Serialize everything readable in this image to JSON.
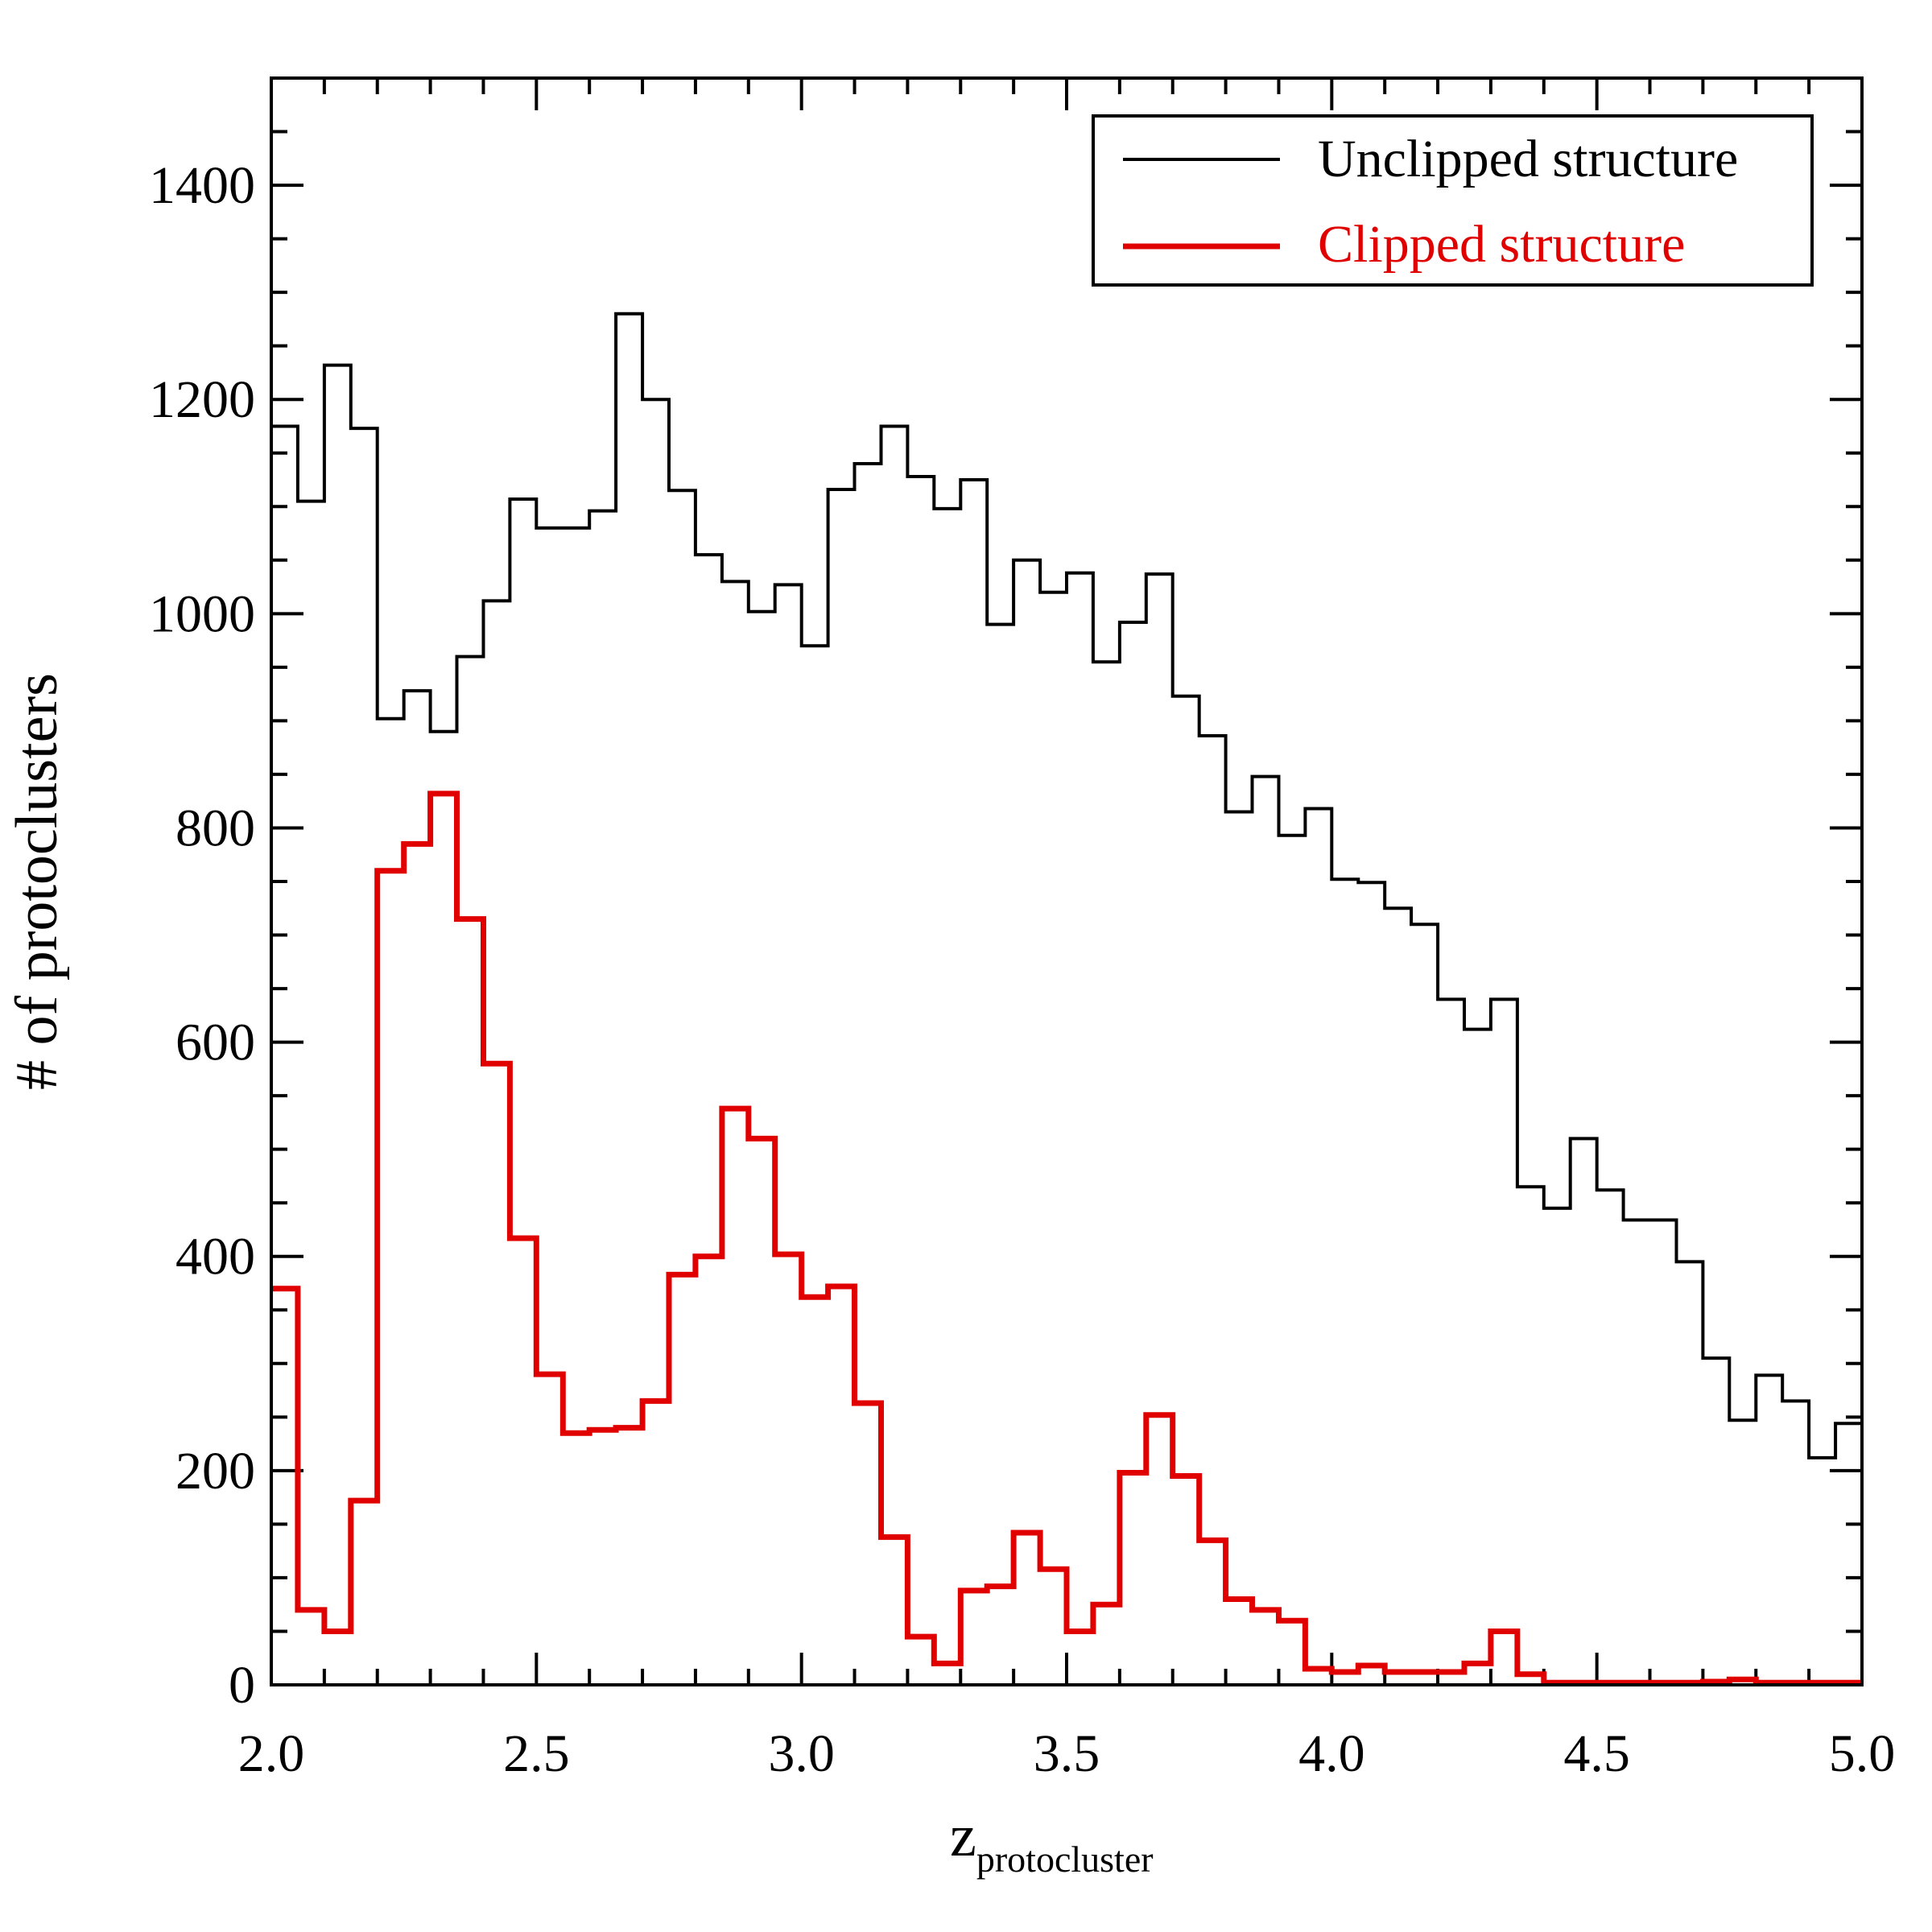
{
  "chart_data": {
    "type": "histogram",
    "title": "",
    "xlabel": "z",
    "xlabel_subscript": "protocluster",
    "ylabel": "# of protoclusters",
    "xlim": [
      2.0,
      5.0
    ],
    "ylim": [
      0,
      1500
    ],
    "xticks": [
      2.0,
      2.5,
      3.0,
      3.5,
      4.0,
      4.5,
      5.0
    ],
    "xtick_labels": [
      "2.0",
      "2.5",
      "3.0",
      "3.5",
      "4.0",
      "4.5",
      "5.0"
    ],
    "yticks": [
      0,
      200,
      400,
      600,
      800,
      1000,
      1200,
      1400
    ],
    "ytick_labels": [
      "0",
      "200",
      "400",
      "600",
      "800",
      "1000",
      "1200",
      "1400"
    ],
    "x_minor_step": 0.1,
    "y_minor_step": 50,
    "grid": false,
    "legend_position": "top-right",
    "bin_edges_start": 2.0,
    "bin_width": 0.05,
    "series": [
      {
        "name": "Unclipped structure",
        "color": "#000000",
        "values": [
          1175,
          1105,
          1232,
          1173,
          902,
          928,
          890,
          960,
          1012,
          1107,
          1080,
          1080,
          1096,
          1280,
          1200,
          1115,
          1055,
          1030,
          1002,
          1027,
          970,
          1116,
          1140,
          1175,
          1128,
          1098,
          1125,
          990,
          1050,
          1020,
          1038,
          955,
          992,
          1037,
          923,
          886,
          815,
          848,
          793,
          818,
          752,
          749,
          725,
          710,
          640,
          612,
          640,
          465,
          445,
          510,
          462,
          434,
          434,
          395,
          305,
          247,
          289,
          265,
          212,
          244
        ]
      },
      {
        "name": "Clipped structure",
        "color": "#e00000",
        "values": [
          370,
          70,
          50,
          172,
          760,
          785,
          832,
          715,
          580,
          417,
          290,
          235,
          238,
          240,
          265,
          383,
          400,
          538,
          510,
          402,
          362,
          372,
          263,
          138,
          45,
          20,
          88,
          92,
          142,
          108,
          50,
          75,
          198,
          252,
          195,
          135,
          80,
          70,
          60,
          15,
          12,
          18,
          12,
          12,
          12,
          20,
          50,
          10,
          2,
          2,
          2,
          2,
          2,
          2,
          3,
          5,
          2,
          2,
          2,
          2
        ]
      }
    ]
  }
}
